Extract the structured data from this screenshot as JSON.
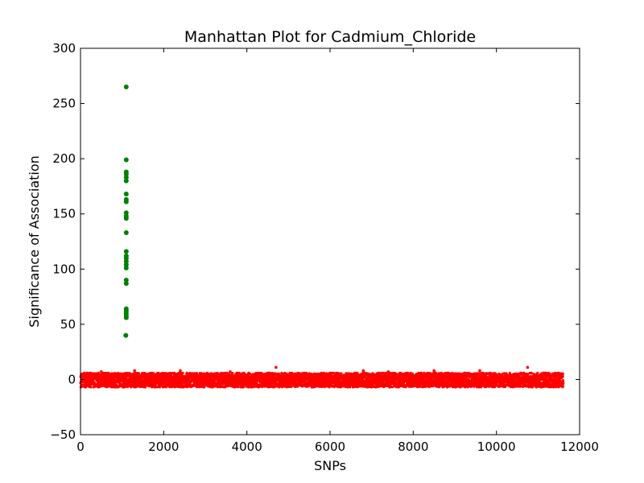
{
  "chart_data": {
    "type": "scatter",
    "title": "Manhattan Plot for Cadmium_Chloride",
    "xlabel": "SNPs",
    "ylabel": "Significance of Association",
    "xlim": [
      0,
      12000
    ],
    "ylim": [
      -50,
      300
    ],
    "xticks": [
      0,
      2000,
      4000,
      6000,
      8000,
      10000,
      12000
    ],
    "xtick_labels": [
      "0",
      "2000",
      "4000",
      "6000",
      "8000",
      "10000",
      "12000"
    ],
    "yticks": [
      -50,
      0,
      50,
      100,
      150,
      200,
      250,
      300
    ],
    "ytick_labels": [
      "−50",
      "0",
      "50",
      "100",
      "150",
      "200",
      "250",
      "300"
    ],
    "grid": false,
    "colors": {
      "significant": "#008000",
      "background": "#ff0000"
    },
    "series": [
      {
        "color": "#008000",
        "points": [
          [
            1100,
            265
          ],
          [
            1100,
            199
          ],
          [
            1100,
            188
          ],
          [
            1100,
            186
          ],
          [
            1100,
            183
          ],
          [
            1100,
            180
          ],
          [
            1100,
            168
          ],
          [
            1100,
            163
          ],
          [
            1100,
            161
          ],
          [
            1100,
            151
          ],
          [
            1100,
            148
          ],
          [
            1100,
            146
          ],
          [
            1100,
            133
          ],
          [
            1100,
            116
          ],
          [
            1100,
            112
          ],
          [
            1100,
            110
          ],
          [
            1100,
            107
          ],
          [
            1100,
            104
          ],
          [
            1100,
            101
          ],
          [
            1100,
            90
          ],
          [
            1100,
            87
          ],
          [
            1100,
            64
          ],
          [
            1100,
            62
          ],
          [
            1100,
            60
          ],
          [
            1100,
            58
          ],
          [
            1100,
            56
          ],
          [
            1090,
            40
          ]
        ]
      },
      {
        "color": "#ff0000",
        "x_range": [
          0,
          11600
        ],
        "y_range": [
          -7,
          6
        ],
        "peaks": [
          [
            4700,
            11
          ],
          [
            10750,
            11
          ],
          [
            1300,
            8
          ],
          [
            2400,
            8
          ],
          [
            6800,
            8
          ],
          [
            8500,
            8
          ],
          [
            9600,
            8
          ],
          [
            7400,
            7
          ],
          [
            3600,
            7
          ],
          [
            500,
            7
          ]
        ]
      }
    ]
  }
}
